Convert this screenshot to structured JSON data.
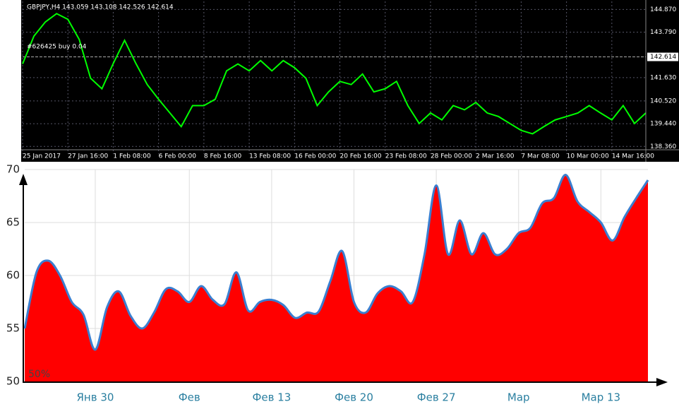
{
  "chart_data": [
    {
      "type": "line",
      "title": "GBPJPY,H4  143.059 143.108 142.526 142.614",
      "annotation": "#626425 buy 0.04",
      "color": "#00ff00",
      "categories": [
        "25 Jan 2017",
        null,
        null,
        null,
        "27 Jan 16:00",
        null,
        null,
        null,
        "1 Feb 08:00",
        null,
        null,
        null,
        "6 Feb 00:00",
        null,
        null,
        null,
        "8 Feb 16:00",
        null,
        null,
        null,
        "13 Feb 08:00",
        null,
        null,
        null,
        "16 Feb 00:00",
        null,
        null,
        null,
        "20 Feb 16:00",
        null,
        null,
        null,
        "23 Feb 08:00",
        null,
        null,
        null,
        "28 Feb 00:00",
        null,
        null,
        null,
        "2 Mar 16:00",
        null,
        null,
        null,
        "7 Mar 08:00",
        null,
        null,
        null,
        "10 Mar 00:00",
        null,
        null,
        null,
        "14 Mar 16:00",
        null,
        null,
        null
      ],
      "values": [
        142.28,
        143.6,
        144.27,
        144.67,
        144.4,
        143.44,
        141.6,
        141.1,
        142.3,
        143.4,
        142.3,
        141.3,
        140.6,
        139.95,
        139.3,
        140.3,
        140.3,
        140.6,
        141.95,
        142.28,
        141.95,
        142.44,
        141.95,
        142.44,
        142.1,
        141.6,
        140.3,
        140.95,
        141.45,
        141.3,
        141.8,
        140.95,
        141.1,
        141.45,
        140.3,
        139.45,
        139.95,
        139.62,
        140.3,
        140.1,
        140.45,
        139.95,
        139.78,
        139.45,
        139.12,
        138.96,
        139.3,
        139.62,
        139.78,
        139.95,
        140.3,
        139.95,
        139.62,
        140.3,
        139.45,
        139.95
      ],
      "ylim": [
        138.0,
        145.25
      ],
      "yticks": [
        {
          "value": 144.87,
          "label": "144.870"
        },
        {
          "value": 143.79,
          "label": "143.790"
        },
        {
          "value": 141.63,
          "label": "141.630"
        },
        {
          "value": 140.52,
          "label": "140.520"
        },
        {
          "value": 139.44,
          "label": "139.440"
        },
        {
          "value": 138.36,
          "label": "138.360"
        }
      ],
      "current_price": {
        "value": 142.614,
        "label": "142.614"
      },
      "grid": true
    },
    {
      "type": "area",
      "annotation": "50%",
      "color": "#ff0000",
      "line_color": "#3a7fd0",
      "categories": [
        null,
        null,
        null,
        null,
        null,
        null,
        "Янв 30",
        null,
        null,
        null,
        null,
        null,
        null,
        null,
        "Фев",
        null,
        null,
        null,
        null,
        null,
        null,
        "Фев 13",
        null,
        null,
        null,
        null,
        null,
        null,
        "Фев 20",
        null,
        null,
        null,
        null,
        null,
        null,
        "Фев 27",
        null,
        null,
        null,
        null,
        null,
        null,
        "Мар",
        null,
        null,
        null,
        null,
        null,
        null,
        "Мар 13",
        null,
        null,
        null,
        null
      ],
      "values": [
        55,
        60.3,
        61.4,
        60,
        57.5,
        56.3,
        53,
        57,
        58.5,
        56.2,
        55,
        56.5,
        58.7,
        58.5,
        57.5,
        59,
        57.7,
        57.3,
        60.3,
        56.7,
        57.5,
        57.7,
        57.2,
        56,
        56.5,
        56.6,
        59.5,
        62.3,
        57.5,
        56.5,
        58.3,
        59,
        58.5,
        57.5,
        62,
        68.5,
        62,
        65.2,
        62,
        64,
        62,
        62.5,
        64,
        64.5,
        66.8,
        67.3,
        69.5,
        67,
        66,
        65,
        63.3,
        65.5,
        67.3,
        69
      ],
      "ylim": [
        50,
        70
      ],
      "yticks": [
        50,
        55,
        60,
        65,
        70
      ],
      "grid": true
    }
  ]
}
